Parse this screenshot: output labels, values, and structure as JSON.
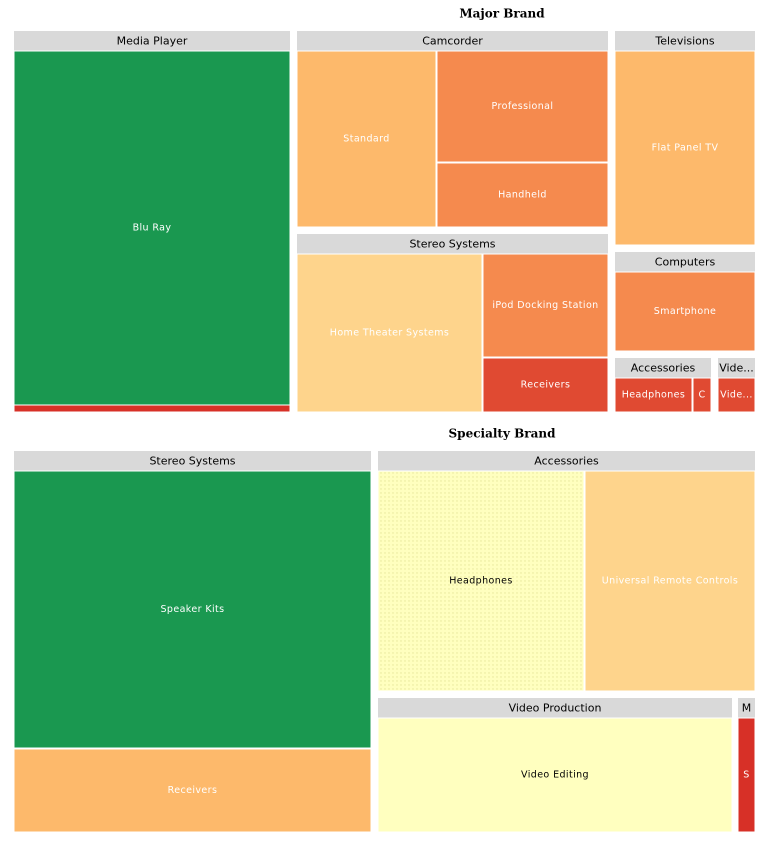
{
  "chart_data": {
    "type": "treemap",
    "panels": [
      {
        "title": "Major Brand",
        "groups": [
          {
            "name": "Media Player",
            "items": [
              {
                "name": "Blu Ray",
                "color": "#1a9850",
                "text_color": "#ffffff",
                "show_label": true
              },
              {
                "name": "",
                "color": "#d73027",
                "text_color": "#ffffff",
                "show_label": false
              }
            ]
          },
          {
            "name": "Camcorder",
            "items": [
              {
                "name": "Standard",
                "color": "#fdb96b",
                "text_color": "#ffffff",
                "show_label": true
              },
              {
                "name": "Professional",
                "color": "#f58a4e",
                "text_color": "#ffffff",
                "show_label": true
              },
              {
                "name": "Handheld",
                "color": "#f58a4e",
                "text_color": "#ffffff",
                "show_label": true
              }
            ]
          },
          {
            "name": "Televisions",
            "items": [
              {
                "name": "Flat Panel TV",
                "color": "#fdb96b",
                "text_color": "#ffffff",
                "show_label": true
              }
            ]
          },
          {
            "name": "Stereo Systems",
            "items": [
              {
                "name": "Home Theater Systems",
                "color": "#fed48c",
                "text_color": "#ffffff",
                "show_label": true
              },
              {
                "name": "iPod Docking Station",
                "color": "#f58a4e",
                "text_color": "#ffffff",
                "show_label": true
              },
              {
                "name": "Receivers",
                "color": "#e04a32",
                "text_color": "#ffffff",
                "show_label": true
              }
            ]
          },
          {
            "name": "Computers",
            "items": [
              {
                "name": "Smartphone",
                "color": "#f58a4e",
                "text_color": "#ffffff",
                "show_label": true
              }
            ]
          },
          {
            "name": "Accessories",
            "items": [
              {
                "name": "Headphones",
                "color": "#e04a32",
                "text_color": "#ffffff",
                "show_label": true
              },
              {
                "name": "C",
                "color": "#e04a32",
                "text_color": "#ffffff",
                "show_label": true
              }
            ]
          },
          {
            "name": "Vide...",
            "items": [
              {
                "name": "Vide...",
                "color": "#e04a32",
                "text_color": "#ffffff",
                "show_label": true
              }
            ]
          }
        ]
      },
      {
        "title": "Specialty Brand",
        "groups": [
          {
            "name": "Stereo Systems",
            "items": [
              {
                "name": "Speaker Kits",
                "color": "#1a9850",
                "text_color": "#ffffff",
                "show_label": true
              },
              {
                "name": "Receivers",
                "color": "#fdb96b",
                "text_color": "#ffffff",
                "show_label": true
              }
            ]
          },
          {
            "name": "Accessories",
            "items": [
              {
                "name": "Headphones",
                "color": "#ffffbf",
                "text_color": "#000000",
                "show_label": true,
                "dotted": true
              },
              {
                "name": "Universal Remote Controls",
                "color": "#fed48c",
                "text_color": "#ffffff",
                "show_label": true
              }
            ]
          },
          {
            "name": "Video Production",
            "items": [
              {
                "name": "Video Editing",
                "color": "#ffffbf",
                "text_color": "#000000",
                "show_label": true
              }
            ]
          },
          {
            "name": "M",
            "items": [
              {
                "name": "S",
                "color": "#d73027",
                "text_color": "#ffffff",
                "show_label": true
              }
            ]
          }
        ]
      }
    ],
    "header_color": "#d9d9d9"
  }
}
